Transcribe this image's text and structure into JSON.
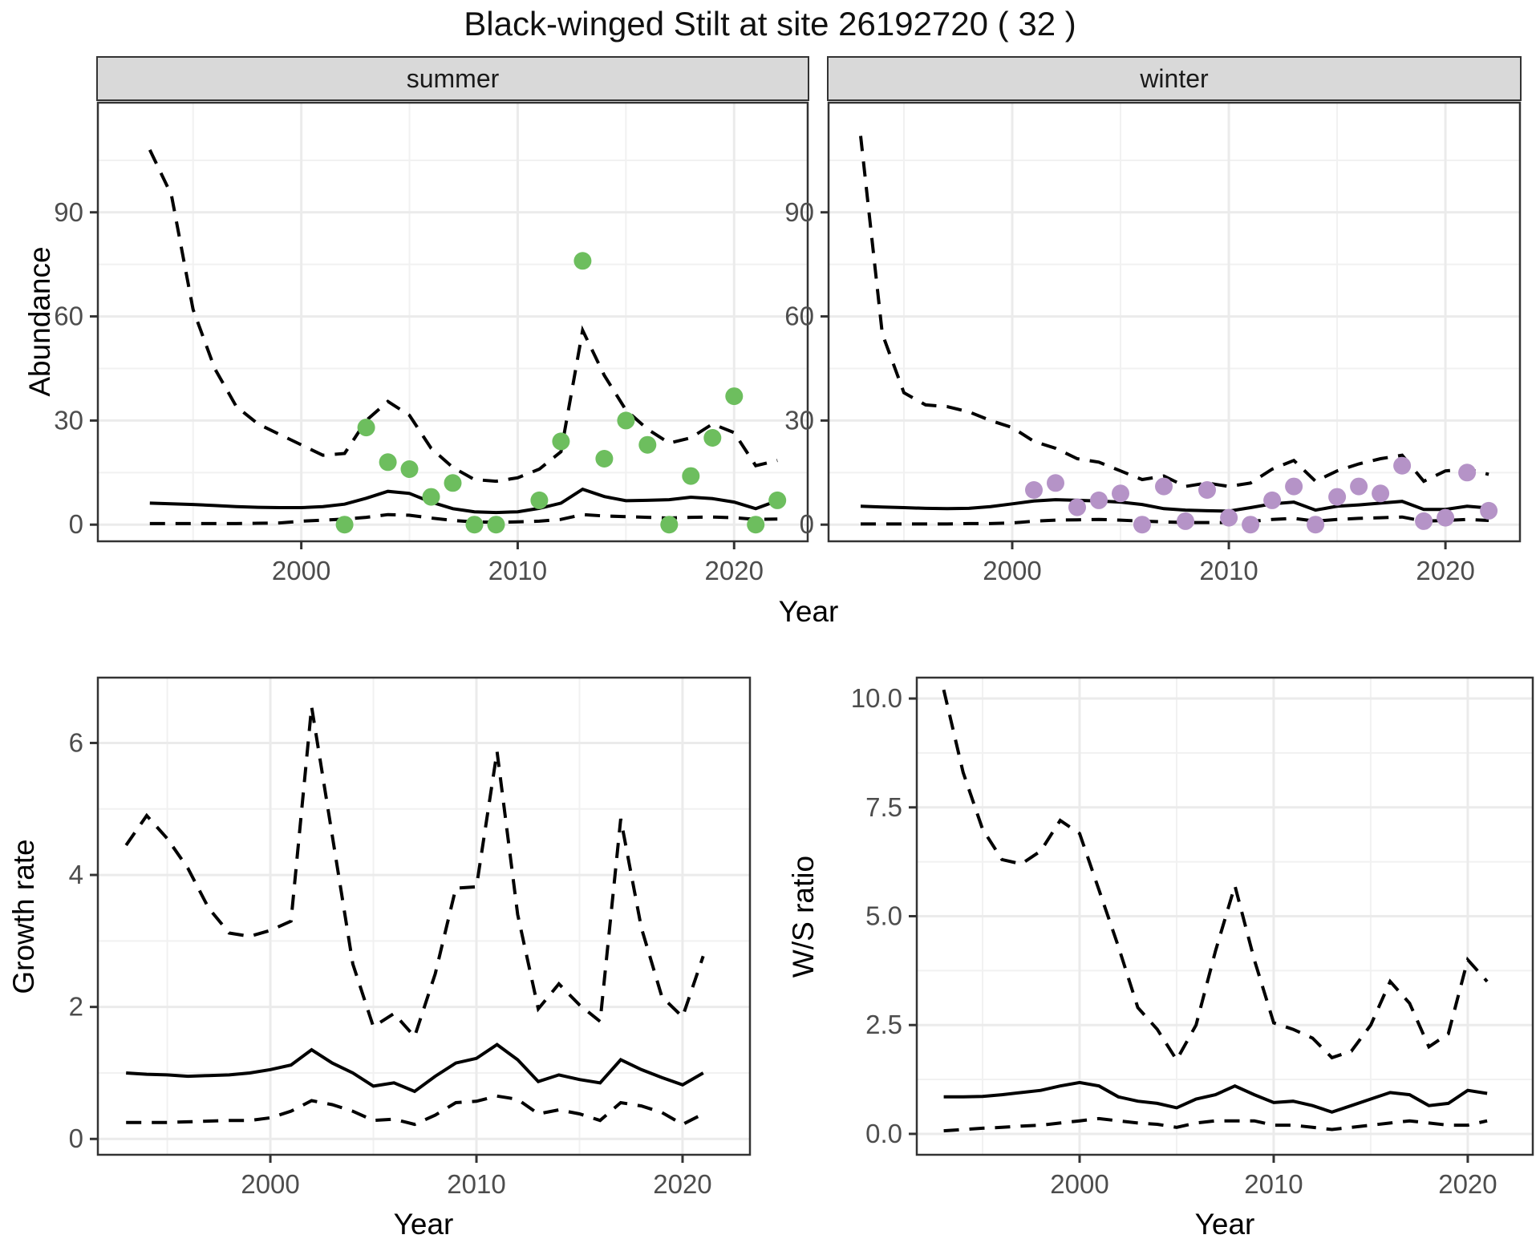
{
  "title": "Black-winged Stilt at site 26192720 ( 32 )",
  "labels": {
    "strip_summer": "summer",
    "strip_winter": "winter",
    "ylabel_abundance": "Abundance",
    "ylabel_growth": "Growth rate",
    "ylabel_ws": "W/S ratio",
    "xlabel": "Year"
  },
  "colors": {
    "summer_point": "#6DBE5E",
    "winter_point": "#B593C7",
    "line": "#000000",
    "strip_bg": "#D9D9D9",
    "grid_major": "#EBEBEB",
    "grid_minor": "#F1F1F1",
    "panel_border": "#333333",
    "axis_text": "#4D4D4D"
  },
  "chart_data": [
    {
      "key": "summer",
      "type": "line",
      "facet": "summer",
      "ylabel": "Abundance",
      "xlabel": "Year",
      "x_years": [
        1993,
        1994,
        1995,
        1996,
        1997,
        1998,
        1999,
        2000,
        2001,
        2002,
        2003,
        2004,
        2005,
        2006,
        2007,
        2008,
        2009,
        2010,
        2011,
        2012,
        2013,
        2014,
        2015,
        2016,
        2017,
        2018,
        2019,
        2020,
        2021,
        2022
      ],
      "series": [
        {
          "name": "fit",
          "style": "solid",
          "values": [
            6.2,
            6.0,
            5.8,
            5.5,
            5.2,
            5.0,
            4.9,
            4.9,
            5.2,
            5.9,
            7.6,
            9.6,
            9.0,
            6.5,
            4.6,
            3.7,
            3.5,
            3.7,
            4.7,
            6.2,
            10.2,
            8.1,
            6.9,
            7.0,
            7.2,
            7.9,
            7.5,
            6.5,
            4.6,
            6.9
          ]
        },
        {
          "name": "upper_ci",
          "style": "dashed",
          "values": [
            108,
            95,
            62,
            45,
            34,
            29,
            26,
            23,
            20,
            20.5,
            30,
            35.5,
            31.5,
            22,
            16.5,
            13,
            12.5,
            13.5,
            16,
            21,
            56,
            43,
            33,
            27.5,
            23.5,
            25,
            29,
            26.5,
            17,
            18.5
          ]
        },
        {
          "name": "lower_ci",
          "style": "dashed",
          "values": [
            0.3,
            0.3,
            0.3,
            0.3,
            0.3,
            0.4,
            0.5,
            1.0,
            1.3,
            1.6,
            2.1,
            2.9,
            2.7,
            1.9,
            1.2,
            0.8,
            0.7,
            0.8,
            1.0,
            1.5,
            2.9,
            2.5,
            2.3,
            2.1,
            1.9,
            2.1,
            2.2,
            2.0,
            1.5,
            1.6
          ]
        }
      ],
      "points": {
        "name": "observed_counts",
        "color_key": "summer_point",
        "x": [
          2002,
          2003,
          2004,
          2005,
          2006,
          2007,
          2008,
          2009,
          2011,
          2012,
          2013,
          2014,
          2015,
          2016,
          2017,
          2018,
          2019,
          2020,
          2021,
          2022
        ],
        "y": [
          0,
          28,
          18,
          16,
          8,
          12,
          0,
          0,
          7,
          24,
          76,
          19,
          30,
          23,
          0,
          14,
          25,
          37,
          0,
          7
        ]
      },
      "xticks": {
        "values": [
          2000,
          2010,
          2020
        ],
        "labels": [
          "2000",
          "2010",
          "2020"
        ]
      },
      "yticks": {
        "values": [
          0,
          30,
          60,
          90
        ],
        "labels": [
          "0",
          "30",
          "60",
          "90"
        ]
      },
      "x_minor": [
        1995,
        2005,
        2015
      ],
      "y_minor": [
        15,
        45,
        75,
        105
      ],
      "xlim": [
        1990.6,
        2023.4
      ],
      "ylim": [
        -4.8,
        121.6
      ]
    },
    {
      "key": "winter",
      "type": "line",
      "facet": "winter",
      "ylabel": "Abundance",
      "xlabel": "Year",
      "x_years": [
        1993,
        1994,
        1995,
        1996,
        1997,
        1998,
        1999,
        2000,
        2001,
        2002,
        2003,
        2004,
        2005,
        2006,
        2007,
        2008,
        2009,
        2010,
        2011,
        2012,
        2013,
        2014,
        2015,
        2016,
        2017,
        2018,
        2019,
        2020,
        2021,
        2022
      ],
      "series": [
        {
          "name": "fit",
          "style": "solid",
          "values": [
            5.3,
            5.1,
            4.9,
            4.7,
            4.6,
            4.7,
            5.2,
            6.0,
            6.8,
            7.2,
            7.0,
            6.8,
            6.5,
            5.8,
            4.6,
            4.2,
            4.0,
            3.9,
            4.9,
            6.0,
            6.5,
            4.2,
            5.3,
            5.7,
            6.2,
            6.7,
            4.4,
            4.4,
            5.3,
            4.8
          ]
        },
        {
          "name": "upper_ci",
          "style": "dashed",
          "values": [
            112,
            55,
            38,
            34.5,
            34,
            32.5,
            30,
            28,
            24,
            22,
            19,
            18,
            15.5,
            13,
            14,
            11,
            12,
            11,
            12,
            16,
            18.5,
            12.5,
            15.5,
            17.5,
            19,
            20,
            12.5,
            15.5,
            16,
            14.5
          ]
        },
        {
          "name": "lower_ci",
          "style": "dashed",
          "values": [
            0.2,
            0.2,
            0.2,
            0.2,
            0.2,
            0.3,
            0.3,
            0.5,
            1.0,
            1.3,
            1.4,
            1.5,
            1.3,
            1.0,
            0.8,
            0.6,
            0.6,
            0.6,
            0.9,
            1.5,
            1.8,
            1.0,
            1.5,
            1.8,
            2.0,
            2.2,
            1.0,
            1.2,
            1.5,
            1.2
          ]
        }
      ],
      "points": {
        "name": "observed_counts",
        "color_key": "winter_point",
        "x": [
          2001,
          2002,
          2003,
          2004,
          2005,
          2006,
          2007,
          2008,
          2009,
          2010,
          2011,
          2012,
          2013,
          2014,
          2015,
          2016,
          2017,
          2018,
          2019,
          2020,
          2021,
          2022
        ],
        "y": [
          10,
          12,
          5,
          7,
          9,
          0,
          11,
          1,
          10,
          2,
          0,
          7,
          11,
          0,
          8,
          11,
          9,
          17,
          1,
          2,
          15,
          4
        ]
      },
      "xticks": {
        "values": [
          2000,
          2010,
          2020
        ],
        "labels": [
          "2000",
          "2010",
          "2020"
        ]
      },
      "yticks": {
        "values": [
          0,
          30,
          60,
          90
        ],
        "labels": [
          "0",
          "30",
          "60",
          "90"
        ]
      },
      "x_minor": [
        1995,
        2005,
        2015
      ],
      "y_minor": [
        15,
        45,
        75,
        105
      ],
      "xlim": [
        1991.52,
        2023.44
      ],
      "ylim": [
        -4.8,
        121.6
      ]
    },
    {
      "key": "growth",
      "type": "line",
      "facet": null,
      "ylabel": "Growth rate",
      "xlabel": "Year",
      "x_years": [
        1993,
        1994,
        1995,
        1996,
        1997,
        1998,
        1999,
        2000,
        2001,
        2002,
        2003,
        2004,
        2005,
        2006,
        2007,
        2008,
        2009,
        2010,
        2011,
        2012,
        2013,
        2014,
        2015,
        2016,
        2017,
        2018,
        2019,
        2020,
        2021
      ],
      "series": [
        {
          "name": "fit",
          "style": "solid",
          "values": [
            1.0,
            0.98,
            0.97,
            0.95,
            0.96,
            0.97,
            1.0,
            1.05,
            1.12,
            1.35,
            1.15,
            1.0,
            0.8,
            0.85,
            0.72,
            0.95,
            1.15,
            1.22,
            1.43,
            1.2,
            0.87,
            0.97,
            0.9,
            0.85,
            1.2,
            1.05,
            0.93,
            0.82,
            1.0
          ]
        },
        {
          "name": "upper_ci",
          "style": "dashed",
          "values": [
            4.45,
            4.9,
            4.55,
            4.1,
            3.5,
            3.12,
            3.07,
            3.16,
            3.3,
            6.55,
            4.6,
            2.65,
            1.7,
            1.9,
            1.55,
            2.5,
            3.8,
            3.82,
            5.87,
            3.4,
            1.97,
            2.35,
            2.03,
            1.78,
            4.85,
            3.2,
            2.15,
            1.85,
            2.77
          ]
        },
        {
          "name": "lower_ci",
          "style": "dashed",
          "values": [
            0.25,
            0.25,
            0.25,
            0.26,
            0.27,
            0.28,
            0.28,
            0.32,
            0.42,
            0.58,
            0.52,
            0.42,
            0.28,
            0.3,
            0.22,
            0.36,
            0.55,
            0.57,
            0.65,
            0.6,
            0.38,
            0.44,
            0.38,
            0.28,
            0.55,
            0.5,
            0.4,
            0.22,
            0.38
          ]
        }
      ],
      "points": null,
      "xticks": {
        "values": [
          2000,
          2010,
          2020
        ],
        "labels": [
          "2000",
          "2010",
          "2020"
        ]
      },
      "yticks": {
        "values": [
          0,
          2,
          4,
          6
        ],
        "labels": [
          "0",
          "2",
          "4",
          "6"
        ]
      },
      "x_minor": [
        1995,
        2005,
        2015
      ],
      "y_minor": [
        1,
        3,
        5
      ],
      "xlim": [
        1991.63,
        2023.27
      ],
      "ylim": [
        -0.24,
        6.99
      ]
    },
    {
      "key": "ws",
      "type": "line",
      "facet": null,
      "ylabel": "W/S ratio",
      "xlabel": "Year",
      "x_years": [
        1993,
        1994,
        1995,
        1996,
        1997,
        1998,
        1999,
        2000,
        2001,
        2002,
        2003,
        2004,
        2005,
        2006,
        2007,
        2008,
        2009,
        2010,
        2011,
        2012,
        2013,
        2014,
        2015,
        2016,
        2017,
        2018,
        2019,
        2020,
        2021
      ],
      "series": [
        {
          "name": "fit",
          "style": "solid",
          "values": [
            0.85,
            0.85,
            0.86,
            0.9,
            0.95,
            1.0,
            1.1,
            1.18,
            1.1,
            0.85,
            0.75,
            0.7,
            0.6,
            0.8,
            0.9,
            1.1,
            0.9,
            0.72,
            0.75,
            0.65,
            0.5,
            0.65,
            0.8,
            0.95,
            0.9,
            0.65,
            0.7,
            1.0,
            0.93
          ]
        },
        {
          "name": "upper_ci",
          "style": "dashed",
          "values": [
            10.2,
            8.3,
            7.0,
            6.3,
            6.2,
            6.5,
            7.2,
            6.9,
            5.6,
            4.3,
            2.9,
            2.4,
            1.7,
            2.5,
            4.2,
            5.7,
            4.0,
            2.55,
            2.4,
            2.2,
            1.75,
            1.9,
            2.5,
            3.5,
            3.0,
            2.0,
            2.3,
            4.0,
            3.5
          ]
        },
        {
          "name": "lower_ci",
          "style": "dashed",
          "values": [
            0.07,
            0.1,
            0.13,
            0.15,
            0.18,
            0.2,
            0.25,
            0.3,
            0.35,
            0.3,
            0.25,
            0.22,
            0.15,
            0.25,
            0.3,
            0.3,
            0.3,
            0.2,
            0.2,
            0.15,
            0.1,
            0.15,
            0.2,
            0.25,
            0.3,
            0.25,
            0.2,
            0.2,
            0.3
          ]
        }
      ],
      "points": null,
      "xticks": {
        "values": [
          2000,
          2010,
          2020
        ],
        "labels": [
          "2000",
          "2010",
          "2020"
        ]
      },
      "yticks": {
        "values": [
          0,
          2.5,
          5,
          7.5,
          10
        ],
        "labels": [
          "0.0",
          "2.5",
          "5.0",
          "7.5",
          "10.0"
        ]
      },
      "x_minor": [
        1995,
        2005,
        2015
      ],
      "y_minor": [
        1.25,
        3.75,
        6.25,
        8.75
      ],
      "xlim": [
        1991.61,
        2023.35
      ],
      "ylim": [
        -0.48,
        10.48
      ]
    }
  ]
}
